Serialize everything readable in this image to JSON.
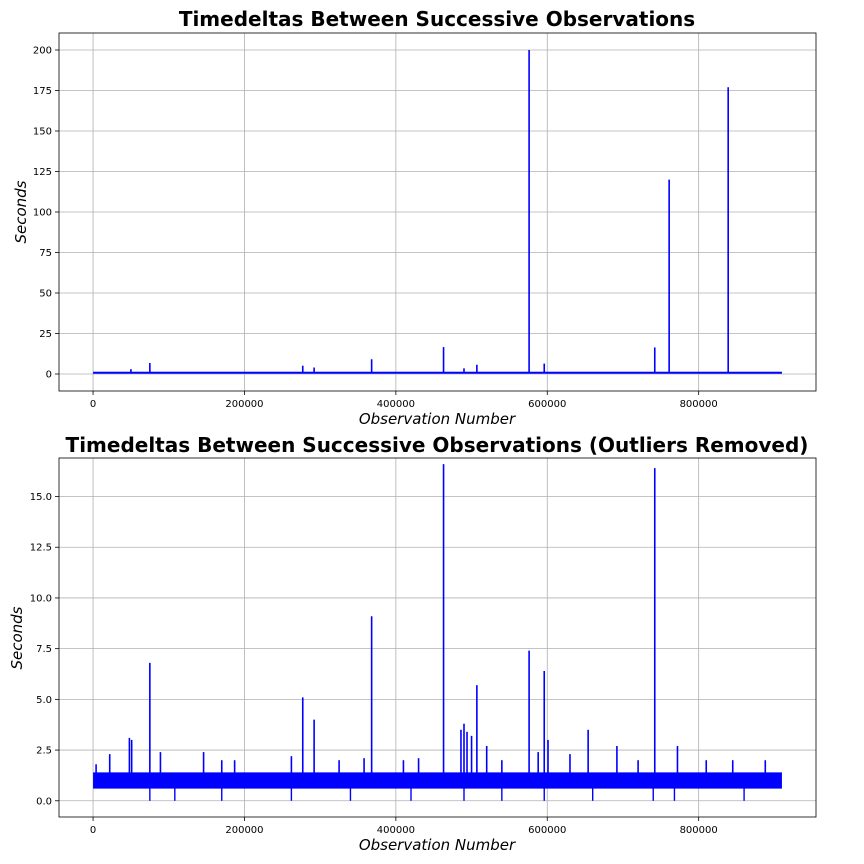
{
  "chart_data": [
    {
      "type": "line",
      "title": "Timedeltas Between Successive Observations",
      "xlabel": "Observation Number",
      "ylabel": "Seconds",
      "xlim": [
        -45000,
        955000
      ],
      "ylim": [
        -10.5,
        210.5
      ],
      "xticks": [
        0,
        200000,
        400000,
        600000,
        800000
      ],
      "xtick_labels": [
        "0",
        "200000",
        "400000",
        "600000",
        "800000"
      ],
      "yticks": [
        0,
        25,
        50,
        75,
        100,
        125,
        150,
        175,
        200
      ],
      "ytick_labels": [
        "0",
        "25",
        "50",
        "75",
        "100",
        "125",
        "150",
        "175",
        "200"
      ],
      "grid": true,
      "color": "#0000ff",
      "baseline": {
        "x_range": [
          0,
          910000
        ],
        "y_range": [
          0.7,
          1.4
        ]
      },
      "spikes": [
        {
          "x": 50000,
          "y": 3
        },
        {
          "x": 75000,
          "y": 6.8
        },
        {
          "x": 277000,
          "y": 5.1
        },
        {
          "x": 292000,
          "y": 4
        },
        {
          "x": 368000,
          "y": 9.1
        },
        {
          "x": 463000,
          "y": 16.6
        },
        {
          "x": 490000,
          "y": 3.5
        },
        {
          "x": 507000,
          "y": 5.7
        },
        {
          "x": 576000,
          "y": 200
        },
        {
          "x": 596000,
          "y": 6.4
        },
        {
          "x": 742000,
          "y": 16.4
        },
        {
          "x": 761000,
          "y": 120
        },
        {
          "x": 839000,
          "y": 177
        }
      ]
    },
    {
      "type": "line",
      "title": "Timedeltas Between Successive Observations (Outliers Removed)",
      "xlabel": "Observation Number",
      "ylabel": "Seconds",
      "xlim": [
        -45000,
        955000
      ],
      "ylim": [
        -0.8,
        16.9
      ],
      "xticks": [
        0,
        200000,
        400000,
        600000,
        800000
      ],
      "xtick_labels": [
        "0",
        "200000",
        "400000",
        "600000",
        "800000"
      ],
      "yticks": [
        0,
        2.5,
        5,
        7.5,
        10,
        12.5,
        15
      ],
      "ytick_labels": [
        "0.0",
        "2.5",
        "5.0",
        "7.5",
        "10.0",
        "12.5",
        "15.0"
      ],
      "grid": true,
      "color": "#0000ff",
      "baseline": {
        "x_range": [
          0,
          910000
        ],
        "y_range": [
          0.6,
          1.4
        ]
      },
      "spikes": [
        {
          "x": 4000,
          "y": 1.8
        },
        {
          "x": 22000,
          "y": 2.3
        },
        {
          "x": 48000,
          "y": 3.1
        },
        {
          "x": 51000,
          "y": 3.0
        },
        {
          "x": 75000,
          "y": 6.8
        },
        {
          "x": 89000,
          "y": 2.4
        },
        {
          "x": 146000,
          "y": 2.4
        },
        {
          "x": 170000,
          "y": 2.0
        },
        {
          "x": 187000,
          "y": 2.0
        },
        {
          "x": 262000,
          "y": 2.2
        },
        {
          "x": 277000,
          "y": 5.1
        },
        {
          "x": 292000,
          "y": 4.0
        },
        {
          "x": 325000,
          "y": 2.0
        },
        {
          "x": 358000,
          "y": 2.1
        },
        {
          "x": 368000,
          "y": 9.1
        },
        {
          "x": 410000,
          "y": 2.0
        },
        {
          "x": 430000,
          "y": 2.1
        },
        {
          "x": 463000,
          "y": 16.6
        },
        {
          "x": 486000,
          "y": 3.5
        },
        {
          "x": 490000,
          "y": 3.8
        },
        {
          "x": 494000,
          "y": 3.4
        },
        {
          "x": 500000,
          "y": 3.2
        },
        {
          "x": 507000,
          "y": 5.7
        },
        {
          "x": 520000,
          "y": 2.7
        },
        {
          "x": 540000,
          "y": 2.0
        },
        {
          "x": 576000,
          "y": 7.4
        },
        {
          "x": 588000,
          "y": 2.4
        },
        {
          "x": 596000,
          "y": 6.4
        },
        {
          "x": 601000,
          "y": 3.0
        },
        {
          "x": 630000,
          "y": 2.3
        },
        {
          "x": 654000,
          "y": 3.5
        },
        {
          "x": 692000,
          "y": 2.7
        },
        {
          "x": 720000,
          "y": 2.0
        },
        {
          "x": 742000,
          "y": 16.4
        },
        {
          "x": 772000,
          "y": 2.7
        },
        {
          "x": 810000,
          "y": 2.0
        },
        {
          "x": 845000,
          "y": 2.0
        },
        {
          "x": 888000,
          "y": 2.0
        }
      ],
      "dips": [
        {
          "x": 75000,
          "y": 0
        },
        {
          "x": 108000,
          "y": 0
        },
        {
          "x": 170000,
          "y": 0
        },
        {
          "x": 262000,
          "y": 0
        },
        {
          "x": 340000,
          "y": 0
        },
        {
          "x": 420000,
          "y": 0
        },
        {
          "x": 490000,
          "y": 0
        },
        {
          "x": 540000,
          "y": 0
        },
        {
          "x": 596000,
          "y": 0
        },
        {
          "x": 660000,
          "y": 0
        },
        {
          "x": 740000,
          "y": 0
        },
        {
          "x": 768000,
          "y": 0
        },
        {
          "x": 860000,
          "y": 0
        }
      ]
    }
  ]
}
